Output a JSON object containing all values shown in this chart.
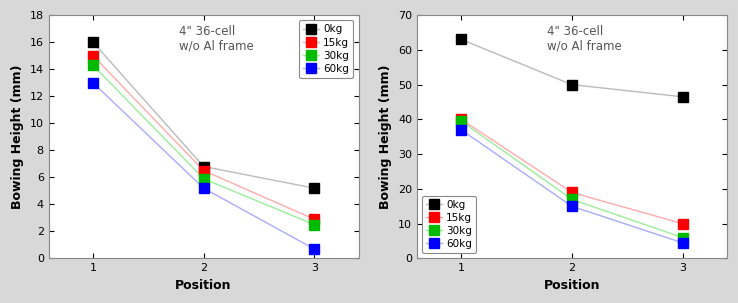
{
  "left": {
    "title": "4\" 36-cell\nw/o Al frame",
    "xlabel": "Position",
    "ylabel": "Bowing Height (mm)",
    "ylim": [
      0,
      18
    ],
    "yticks": [
      0,
      2,
      4,
      6,
      8,
      10,
      12,
      14,
      16,
      18
    ],
    "xticks": [
      1,
      2,
      3
    ],
    "series": {
      "0kg": {
        "color": "#000000",
        "line_color": "#bbbbbb",
        "values": [
          16.0,
          6.8,
          5.2
        ]
      },
      "15kg": {
        "color": "#ff0000",
        "line_color": "#ffaaaa",
        "values": [
          15.0,
          6.5,
          2.9
        ]
      },
      "30kg": {
        "color": "#00bb00",
        "line_color": "#99ee99",
        "values": [
          14.3,
          5.9,
          2.5
        ]
      },
      "60kg": {
        "color": "#0000ff",
        "line_color": "#aaaaff",
        "values": [
          13.0,
          5.2,
          0.7
        ]
      }
    },
    "legend_loc": "upper right"
  },
  "right": {
    "title": "4\" 36-cell\nw/o Al frame",
    "xlabel": "Position",
    "ylabel": "Bowing Height (mm)",
    "ylim": [
      0,
      70
    ],
    "yticks": [
      0,
      10,
      20,
      30,
      40,
      50,
      60,
      70
    ],
    "xticks": [
      1,
      2,
      3
    ],
    "series": {
      "0kg": {
        "color": "#000000",
        "line_color": "#bbbbbb",
        "values": [
          63.0,
          50.0,
          46.5
        ]
      },
      "15kg": {
        "color": "#ff0000",
        "line_color": "#ffaaaa",
        "values": [
          40.0,
          19.0,
          10.0
        ]
      },
      "30kg": {
        "color": "#00bb00",
        "line_color": "#99ee99",
        "values": [
          39.5,
          17.0,
          6.0
        ]
      },
      "60kg": {
        "color": "#0000ff",
        "line_color": "#aaaaff",
        "values": [
          37.0,
          15.0,
          4.5
        ]
      }
    },
    "legend_loc": "lower left"
  },
  "marker": "s",
  "marker_size": 7,
  "line_style": "-",
  "background_color": "#ffffff",
  "fig_background": "#d8d8d8",
  "font_size_title": 8.5,
  "font_size_label": 9,
  "font_size_tick": 8,
  "font_size_legend": 7.5
}
